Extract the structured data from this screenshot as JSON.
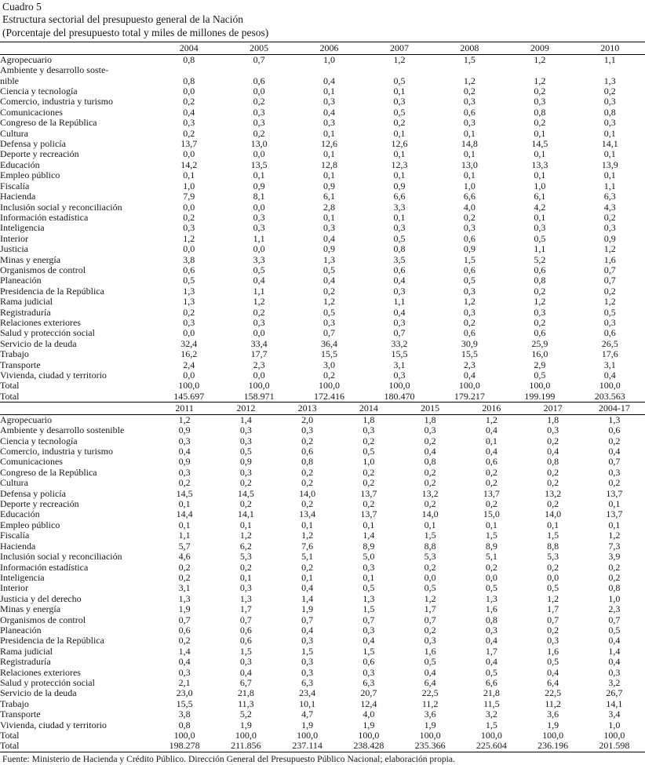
{
  "document": {
    "label": "Cuadro 5",
    "title": "Estructura sectorial del presupuesto general de la Nación",
    "subtitle": "(Porcentaje del presupuesto total y miles de millones de pesos)",
    "source_note": "Fuente: Ministerio de Hacienda y Crédito Público. Dirección General del Presupuesto Público Nacional; elaboración propia."
  },
  "table_2004_2010": {
    "columns": [
      "2004",
      "2005",
      "2006",
      "2007",
      "2008",
      "2009",
      "2010"
    ],
    "rows": [
      {
        "label": "Agropecuario",
        "values": [
          "0,8",
          "0,7",
          "1,0",
          "1,2",
          "1,5",
          "1,2",
          "1,1"
        ]
      },
      {
        "label": "Ambiente y desarrollo soste-\nnible",
        "values": [
          "0,8",
          "0,6",
          "0,4",
          "0,5",
          "1,2",
          "1,2",
          "1,3"
        ]
      },
      {
        "label": "Ciencia y tecnología",
        "values": [
          "0,0",
          "0,0",
          "0,1",
          "0,1",
          "0,2",
          "0,2",
          "0,2"
        ]
      },
      {
        "label": "Comercio, industria y turismo",
        "values": [
          "0,2",
          "0,2",
          "0,3",
          "0,3",
          "0,3",
          "0,3",
          "0,3"
        ]
      },
      {
        "label": "Comunicaciones",
        "values": [
          "0,4",
          "0,3",
          "0,4",
          "0,5",
          "0,6",
          "0,8",
          "0,8"
        ]
      },
      {
        "label": "Congreso de la República",
        "values": [
          "0,3",
          "0,3",
          "0,3",
          "0,2",
          "0,3",
          "0,2",
          "0,3"
        ]
      },
      {
        "label": "Cultura",
        "values": [
          "0,2",
          "0,2",
          "0,1",
          "0,1",
          "0,1",
          "0,1",
          "0,1"
        ]
      },
      {
        "label": "Defensa y policía",
        "values": [
          "13,7",
          "13,0",
          "12,6",
          "12,6",
          "14,8",
          "14,5",
          "14,1"
        ]
      },
      {
        "label": "Deporte y recreación",
        "values": [
          "0,0",
          "0,0",
          "0,1",
          "0,1",
          "0,1",
          "0,1",
          "0,1"
        ]
      },
      {
        "label": "Educación",
        "values": [
          "14,2",
          "13,5",
          "12,8",
          "12,3",
          "13,0",
          "13,3",
          "13,9"
        ]
      },
      {
        "label": "Empleo público",
        "values": [
          "0,1",
          "0,1",
          "0,1",
          "0,1",
          "0,1",
          "0,1",
          "0,1"
        ]
      },
      {
        "label": "Fiscalía",
        "values": [
          "1,0",
          "0,9",
          "0,9",
          "0,9",
          "1,0",
          "1,0",
          "1,1"
        ]
      },
      {
        "label": "Hacienda",
        "values": [
          "7,9",
          "8,1",
          "6,1",
          "6,6",
          "6,6",
          "6,1",
          "6,3"
        ]
      },
      {
        "label": "Inclusión social y reconciliación",
        "values": [
          "0,0",
          "0,0",
          "2,8",
          "3,3",
          "4,0",
          "4,2",
          "4,3"
        ]
      },
      {
        "label": "Información estadística",
        "values": [
          "0,2",
          "0,3",
          "0,1",
          "0,1",
          "0,2",
          "0,1",
          "0,2"
        ]
      },
      {
        "label": "Inteligencia",
        "values": [
          "0,3",
          "0,3",
          "0,3",
          "0,3",
          "0,3",
          "0,3",
          "0,3"
        ]
      },
      {
        "label": "Interior",
        "values": [
          "1,2",
          "1,1",
          "0,4",
          "0,5",
          "0,6",
          "0,5",
          "0,9"
        ]
      },
      {
        "label": "Justicia",
        "values": [
          "0,0",
          "0,0",
          "0,9",
          "0,8",
          "0,9",
          "1,1",
          "1,2"
        ]
      },
      {
        "label": "Minas y energía",
        "values": [
          "3,8",
          "3,3",
          "1,3",
          "3,5",
          "1,5",
          "5,2",
          "1,6"
        ]
      },
      {
        "label": "Organismos de control",
        "values": [
          "0,6",
          "0,5",
          "0,5",
          "0,6",
          "0,6",
          "0,6",
          "0,7"
        ]
      },
      {
        "label": "Planeación",
        "values": [
          "0,5",
          "0,4",
          "0,4",
          "0,4",
          "0,5",
          "0,8",
          "0,7"
        ]
      },
      {
        "label": "Presidencia de la República",
        "values": [
          "1,3",
          "1,1",
          "0,2",
          "0,3",
          "0,3",
          "0,2",
          "0,2"
        ]
      },
      {
        "label": "Rama judicial",
        "values": [
          "1,3",
          "1,2",
          "1,2",
          "1,1",
          "1,2",
          "1,2",
          "1,2"
        ]
      },
      {
        "label": "Registraduría",
        "values": [
          "0,2",
          "0,2",
          "0,5",
          "0,4",
          "0,3",
          "0,3",
          "0,5"
        ]
      },
      {
        "label": "Relaciones exteriores",
        "values": [
          "0,3",
          "0,3",
          "0,3",
          "0,3",
          "0,2",
          "0,2",
          "0,3"
        ]
      },
      {
        "label": "Salud y protección social",
        "values": [
          "0,0",
          "0,0",
          "0,7",
          "0,7",
          "0,6",
          "0,6",
          "0,6"
        ]
      },
      {
        "label": "Servicio de la deuda",
        "values": [
          "32,4",
          "33,4",
          "36,4",
          "33,2",
          "30,9",
          "25,9",
          "26,5"
        ]
      },
      {
        "label": "Trabajo",
        "values": [
          "16,2",
          "17,7",
          "15,5",
          "15,5",
          "15,5",
          "16,0",
          "17,6"
        ]
      },
      {
        "label": "Transporte",
        "values": [
          "2,4",
          "2,3",
          "3,0",
          "3,1",
          "2,3",
          "2,9",
          "3,1"
        ]
      },
      {
        "label": "Vivienda, ciudad y territorio",
        "values": [
          "0,0",
          "0,0",
          "0,2",
          "0,3",
          "0,4",
          "0,5",
          "0,4"
        ]
      },
      {
        "label": "Total",
        "values": [
          "100,0",
          "100,0",
          "100,0",
          "100,0",
          "100,0",
          "100,0",
          "100,0"
        ]
      },
      {
        "label": "Total",
        "values": [
          "145.697",
          "158.971",
          "172.416",
          "180.470",
          "179.217",
          "199.199",
          "203.563"
        ]
      }
    ]
  },
  "table_2011_2017": {
    "columns": [
      "2011",
      "2012",
      "2013",
      "2014",
      "2015",
      "2016",
      "2017",
      "2004-17"
    ],
    "rows": [
      {
        "label": "Agropecuario",
        "values": [
          "1,2",
          "1,4",
          "2,0",
          "1,8",
          "1,8",
          "1,2",
          "1,8",
          "1,3"
        ]
      },
      {
        "label": "Ambiente y desarrollo sostenible",
        "values": [
          "0,9",
          "0,3",
          "0,3",
          "0,3",
          "0,3",
          "0,4",
          "0,3",
          "0,6"
        ]
      },
      {
        "label": "Ciencia y tecnología",
        "values": [
          "0,3",
          "0,3",
          "0,2",
          "0,2",
          "0,2",
          "0,1",
          "0,2",
          "0,2"
        ]
      },
      {
        "label": "Comercio, industria y turismo",
        "values": [
          "0,4",
          "0,5",
          "0,6",
          "0,5",
          "0,4",
          "0,4",
          "0,4",
          "0,4"
        ]
      },
      {
        "label": "Comunicaciones",
        "values": [
          "0,9",
          "0,9",
          "0,8",
          "1,0",
          "0,8",
          "0,6",
          "0,8",
          "0,7"
        ]
      },
      {
        "label": "Congreso de la República",
        "values": [
          "0,3",
          "0,3",
          "0,2",
          "0,2",
          "0,2",
          "0,2",
          "0,2",
          "0,3"
        ]
      },
      {
        "label": "Cultura",
        "values": [
          "0,2",
          "0,2",
          "0,2",
          "0,2",
          "0,2",
          "0,2",
          "0,2",
          "0,2"
        ]
      },
      {
        "label": "Defensa y policía",
        "values": [
          "14,5",
          "14,5",
          "14,0",
          "13,7",
          "13,2",
          "13,7",
          "13,2",
          "13,7"
        ]
      },
      {
        "label": "Deporte y recreación",
        "values": [
          "0,1",
          "0,2",
          "0,2",
          "0,2",
          "0,2",
          "0,2",
          "0,2",
          "0,1"
        ]
      },
      {
        "label": "Educación",
        "values": [
          "14,4",
          "14,1",
          "13,4",
          "13,7",
          "14,0",
          "15,0",
          "14,0",
          "13,7"
        ]
      },
      {
        "label": "Empleo público",
        "values": [
          "0,1",
          "0,1",
          "0,1",
          "0,1",
          "0,1",
          "0,1",
          "0,1",
          "0,1"
        ]
      },
      {
        "label": "Fiscalía",
        "values": [
          "1,1",
          "1,2",
          "1,2",
          "1,4",
          "1,5",
          "1,5",
          "1,5",
          "1,2"
        ]
      },
      {
        "label": "Hacienda",
        "values": [
          "5,7",
          "6,2",
          "7,6",
          "8,9",
          "8,8",
          "8,9",
          "8,8",
          "7,3"
        ]
      },
      {
        "label": "Inclusión social y reconciliación",
        "values": [
          "4,6",
          "5,3",
          "5,1",
          "5,0",
          "5,3",
          "5,1",
          "5,3",
          "3,9"
        ]
      },
      {
        "label": "Información estadística",
        "values": [
          "0,2",
          "0,2",
          "0,2",
          "0,3",
          "0,2",
          "0,2",
          "0,2",
          "0,2"
        ]
      },
      {
        "label": "Inteligencia",
        "values": [
          "0,2",
          "0,1",
          "0,1",
          "0,1",
          "0,0",
          "0,0",
          "0,0",
          "0,2"
        ]
      },
      {
        "label": "Interior",
        "values": [
          "3,1",
          "0,3",
          "0,4",
          "0,5",
          "0,5",
          "0,5",
          "0,5",
          "0,8"
        ]
      },
      {
        "label": "Justicia y del derecho",
        "values": [
          "1,3",
          "1,3",
          "1,4",
          "1,3",
          "1,2",
          "1,3",
          "1,2",
          "1,0"
        ]
      },
      {
        "label": "Minas y energía",
        "values": [
          "1,9",
          "1,7",
          "1,9",
          "1,5",
          "1,7",
          "1,6",
          "1,7",
          "2,3"
        ]
      },
      {
        "label": "Organismos de control",
        "values": [
          "0,7",
          "0,7",
          "0,7",
          "0,7",
          "0,7",
          "0,8",
          "0,7",
          "0,7"
        ]
      },
      {
        "label": "Planeación",
        "values": [
          "0,6",
          "0,6",
          "0,4",
          "0,3",
          "0,2",
          "0,3",
          "0,2",
          "0,5"
        ]
      },
      {
        "label": "Presidencia de la República",
        "values": [
          "0,2",
          "0,6",
          "0,3",
          "0,4",
          "0,3",
          "0,4",
          "0,3",
          "0,4"
        ]
      },
      {
        "label": "Rama judicial",
        "values": [
          "1,4",
          "1,5",
          "1,5",
          "1,5",
          "1,6",
          "1,7",
          "1,6",
          "1,4"
        ]
      },
      {
        "label": "Registraduría",
        "values": [
          "0,4",
          "0,3",
          "0,3",
          "0,6",
          "0,5",
          "0,4",
          "0,5",
          "0,4"
        ]
      },
      {
        "label": "Relaciones exteriores",
        "values": [
          "0,3",
          "0,4",
          "0,3",
          "0,3",
          "0,4",
          "0,5",
          "0,4",
          "0,3"
        ]
      },
      {
        "label": "Salud y protección social",
        "values": [
          "2,1",
          "6,7",
          "6,3",
          "6,3",
          "6,4",
          "6,6",
          "6,4",
          "3,2"
        ]
      },
      {
        "label": "Servicio de la deuda",
        "values": [
          "23,0",
          "21,8",
          "23,4",
          "20,7",
          "22,5",
          "21,8",
          "22,5",
          "26,7"
        ]
      },
      {
        "label": "Trabajo",
        "values": [
          "15,5",
          "11,3",
          "10,1",
          "12,4",
          "11,2",
          "11,5",
          "11,2",
          "14,1"
        ]
      },
      {
        "label": "Transporte",
        "values": [
          "3,8",
          "5,2",
          "4,7",
          "4,0",
          "3,6",
          "3,2",
          "3,6",
          "3,4"
        ]
      },
      {
        "label": "Vivienda, ciudad y territorio",
        "values": [
          "0,8",
          "1,9",
          "1,9",
          "1,9",
          "1,9",
          "1,5",
          "1,9",
          "1,0"
        ]
      },
      {
        "label": "Total",
        "values": [
          "100,0",
          "100,0",
          "100,0",
          "100,0",
          "100,0",
          "100,0",
          "100,0",
          "100,0"
        ]
      },
      {
        "label": "Total",
        "values": [
          "198.278",
          "211.856",
          "237.114",
          "238.428",
          "235.366",
          "225.604",
          "236.196",
          "201.598"
        ]
      }
    ]
  }
}
